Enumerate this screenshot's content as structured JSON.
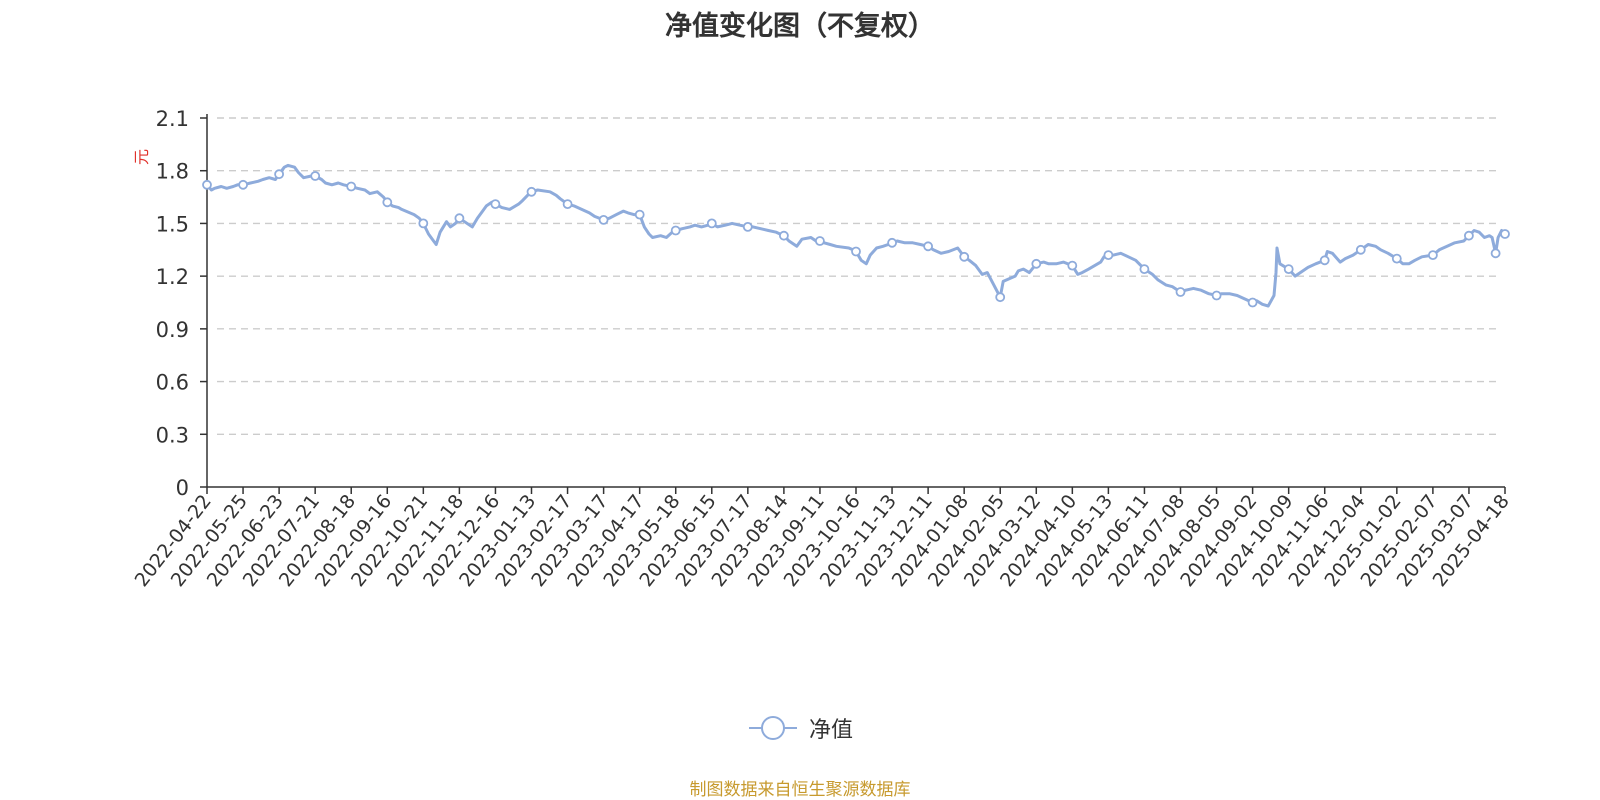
{
  "chart_data": {
    "type": "line",
    "title": "净值变化图（不复权）",
    "ylabel": "元",
    "ylim": [
      0,
      2.1
    ],
    "y_ticks": [
      "0",
      "0.3",
      "0.6",
      "0.9",
      "1.2",
      "1.5",
      "1.8",
      "2.1"
    ],
    "x_ticks": [
      "2022-04-22",
      "2022-05-25",
      "2022-06-23",
      "2022-07-21",
      "2022-08-18",
      "2022-09-16",
      "2022-10-21",
      "2022-11-18",
      "2022-12-16",
      "2023-01-13",
      "2023-02-17",
      "2023-03-17",
      "2023-04-17",
      "2023-05-18",
      "2023-06-15",
      "2023-07-17",
      "2023-08-14",
      "2023-09-11",
      "2023-10-16",
      "2023-11-13",
      "2023-12-11",
      "2024-01-08",
      "2024-02-05",
      "2024-03-12",
      "2024-04-10",
      "2024-05-13",
      "2024-06-11",
      "2024-07-08",
      "2024-08-05",
      "2024-09-02",
      "2024-10-09",
      "2024-11-06",
      "2024-12-04",
      "2025-01-02",
      "2025-02-07",
      "2025-03-07",
      "2025-04-18"
    ],
    "grid": true,
    "legend_position": "bottom",
    "series": [
      {
        "name": "净值",
        "color": "#8eabdb",
        "points": [
          [
            "2022-04-22",
            1.72
          ],
          [
            "2022-04-26",
            1.69
          ],
          [
            "2022-04-29",
            1.7
          ],
          [
            "2022-05-05",
            1.71
          ],
          [
            "2022-05-10",
            1.7
          ],
          [
            "2022-05-16",
            1.71
          ],
          [
            "2022-05-20",
            1.72
          ],
          [
            "2022-05-25",
            1.72
          ],
          [
            "2022-05-31",
            1.73
          ],
          [
            "2022-06-06",
            1.74
          ],
          [
            "2022-06-10",
            1.75
          ],
          [
            "2022-06-15",
            1.76
          ],
          [
            "2022-06-20",
            1.75
          ],
          [
            "2022-06-23",
            1.78
          ],
          [
            "2022-06-27",
            1.82
          ],
          [
            "2022-06-30",
            1.83
          ],
          [
            "2022-07-05",
            1.82
          ],
          [
            "2022-07-08",
            1.79
          ],
          [
            "2022-07-12",
            1.76
          ],
          [
            "2022-07-18",
            1.77
          ],
          [
            "2022-07-21",
            1.77
          ],
          [
            "2022-07-26",
            1.75
          ],
          [
            "2022-07-29",
            1.73
          ],
          [
            "2022-08-03",
            1.72
          ],
          [
            "2022-08-08",
            1.73
          ],
          [
            "2022-08-12",
            1.72
          ],
          [
            "2022-08-18",
            1.71
          ],
          [
            "2022-08-23",
            1.7
          ],
          [
            "2022-08-29",
            1.69
          ],
          [
            "2022-09-02",
            1.67
          ],
          [
            "2022-09-08",
            1.68
          ],
          [
            "2022-09-13",
            1.65
          ],
          [
            "2022-09-16",
            1.62
          ],
          [
            "2022-09-21",
            1.6
          ],
          [
            "2022-09-27",
            1.59
          ],
          [
            "2022-09-30",
            1.58
          ],
          [
            "2022-10-12",
            1.55
          ],
          [
            "2022-10-17",
            1.53
          ],
          [
            "2022-10-21",
            1.5
          ],
          [
            "2022-10-25",
            1.44
          ],
          [
            "2022-10-28",
            1.41
          ],
          [
            "2022-10-31",
            1.38
          ],
          [
            "2022-11-03",
            1.45
          ],
          [
            "2022-11-08",
            1.51
          ],
          [
            "2022-11-11",
            1.48
          ],
          [
            "2022-11-15",
            1.5
          ],
          [
            "2022-11-18",
            1.53
          ],
          [
            "2022-11-22",
            1.51
          ],
          [
            "2022-11-28",
            1.48
          ],
          [
            "2022-12-02",
            1.53
          ],
          [
            "2022-12-06",
            1.57
          ],
          [
            "2022-12-09",
            1.6
          ],
          [
            "2022-12-13",
            1.62
          ],
          [
            "2022-12-16",
            1.61
          ],
          [
            "2022-12-21",
            1.59
          ],
          [
            "2022-12-27",
            1.58
          ],
          [
            "2023-01-03",
            1.61
          ],
          [
            "2023-01-06",
            1.63
          ],
          [
            "2023-01-10",
            1.66
          ],
          [
            "2023-01-13",
            1.68
          ],
          [
            "2023-01-19",
            1.69
          ],
          [
            "2023-01-31",
            1.68
          ],
          [
            "2023-02-06",
            1.66
          ],
          [
            "2023-02-10",
            1.64
          ],
          [
            "2023-02-17",
            1.61
          ],
          [
            "2023-02-22",
            1.6
          ],
          [
            "2023-02-28",
            1.58
          ],
          [
            "2023-03-06",
            1.56
          ],
          [
            "2023-03-10",
            1.54
          ],
          [
            "2023-03-17",
            1.52
          ],
          [
            "2023-03-22",
            1.53
          ],
          [
            "2023-03-28",
            1.55
          ],
          [
            "2023-04-03",
            1.57
          ],
          [
            "2023-04-07",
            1.56
          ],
          [
            "2023-04-12",
            1.55
          ],
          [
            "2023-04-17",
            1.55
          ],
          [
            "2023-04-21",
            1.48
          ],
          [
            "2023-04-25",
            1.44
          ],
          [
            "2023-04-28",
            1.42
          ],
          [
            "2023-05-05",
            1.43
          ],
          [
            "2023-05-10",
            1.42
          ],
          [
            "2023-05-15",
            1.45
          ],
          [
            "2023-05-18",
            1.46
          ],
          [
            "2023-05-23",
            1.47
          ],
          [
            "2023-05-29",
            1.48
          ],
          [
            "2023-06-02",
            1.49
          ],
          [
            "2023-06-07",
            1.48
          ],
          [
            "2023-06-12",
            1.49
          ],
          [
            "2023-06-15",
            1.5
          ],
          [
            "2023-06-20",
            1.48
          ],
          [
            "2023-06-27",
            1.49
          ],
          [
            "2023-07-03",
            1.5
          ],
          [
            "2023-07-10",
            1.49
          ],
          [
            "2023-07-17",
            1.48
          ],
          [
            "2023-07-21",
            1.48
          ],
          [
            "2023-07-27",
            1.47
          ],
          [
            "2023-08-02",
            1.46
          ],
          [
            "2023-08-08",
            1.45
          ],
          [
            "2023-08-14",
            1.43
          ],
          [
            "2023-08-18",
            1.4
          ],
          [
            "2023-08-24",
            1.37
          ],
          [
            "2023-08-28",
            1.41
          ],
          [
            "2023-09-04",
            1.42
          ],
          [
            "2023-09-08",
            1.4
          ],
          [
            "2023-09-11",
            1.4
          ],
          [
            "2023-09-15",
            1.39
          ],
          [
            "2023-09-21",
            1.38
          ],
          [
            "2023-09-27",
            1.37
          ],
          [
            "2023-10-09",
            1.36
          ],
          [
            "2023-10-13",
            1.35
          ],
          [
            "2023-10-16",
            1.34
          ],
          [
            "2023-10-20",
            1.29
          ],
          [
            "2023-10-24",
            1.27
          ],
          [
            "2023-10-27",
            1.32
          ],
          [
            "2023-11-01",
            1.36
          ],
          [
            "2023-11-06",
            1.37
          ],
          [
            "2023-11-10",
            1.38
          ],
          [
            "2023-11-13",
            1.39
          ],
          [
            "2023-11-17",
            1.4
          ],
          [
            "2023-11-23",
            1.39
          ],
          [
            "2023-11-29",
            1.39
          ],
          [
            "2023-12-05",
            1.38
          ],
          [
            "2023-12-11",
            1.37
          ],
          [
            "2023-12-15",
            1.35
          ],
          [
            "2023-12-21",
            1.33
          ],
          [
            "2023-12-27",
            1.34
          ],
          [
            "2024-01-03",
            1.36
          ],
          [
            "2024-01-08",
            1.31
          ],
          [
            "2024-01-12",
            1.29
          ],
          [
            "2024-01-17",
            1.26
          ],
          [
            "2024-01-22",
            1.21
          ],
          [
            "2024-01-26",
            1.22
          ],
          [
            "2024-01-31",
            1.15
          ],
          [
            "2024-02-05",
            1.08
          ],
          [
            "2024-02-08",
            1.17
          ],
          [
            "2024-02-20",
            1.2
          ],
          [
            "2024-02-23",
            1.23
          ],
          [
            "2024-02-28",
            1.24
          ],
          [
            "2024-03-05",
            1.22
          ],
          [
            "2024-03-12",
            1.27
          ],
          [
            "2024-03-18",
            1.28
          ],
          [
            "2024-03-22",
            1.27
          ],
          [
            "2024-03-28",
            1.27
          ],
          [
            "2024-04-03",
            1.28
          ],
          [
            "2024-04-10",
            1.26
          ],
          [
            "2024-04-15",
            1.21
          ],
          [
            "2024-04-19",
            1.22
          ],
          [
            "2024-04-25",
            1.24
          ],
          [
            "2024-05-06",
            1.28
          ],
          [
            "2024-05-09",
            1.31
          ],
          [
            "2024-05-13",
            1.32
          ],
          [
            "2024-05-17",
            1.32
          ],
          [
            "2024-05-23",
            1.33
          ],
          [
            "2024-05-29",
            1.31
          ],
          [
            "2024-06-04",
            1.29
          ],
          [
            "2024-06-11",
            1.24
          ],
          [
            "2024-06-17",
            1.21
          ],
          [
            "2024-06-21",
            1.18
          ],
          [
            "2024-06-27",
            1.15
          ],
          [
            "2024-07-02",
            1.14
          ],
          [
            "2024-07-08",
            1.11
          ],
          [
            "2024-07-12",
            1.12
          ],
          [
            "2024-07-18",
            1.13
          ],
          [
            "2024-07-24",
            1.12
          ],
          [
            "2024-07-30",
            1.1
          ],
          [
            "2024-08-05",
            1.09
          ],
          [
            "2024-08-09",
            1.1
          ],
          [
            "2024-08-15",
            1.1
          ],
          [
            "2024-08-21",
            1.09
          ],
          [
            "2024-08-27",
            1.07
          ],
          [
            "2024-09-02",
            1.05
          ],
          [
            "2024-09-06",
            1.06
          ],
          [
            "2024-09-12",
            1.04
          ],
          [
            "2024-09-18",
            1.03
          ],
          [
            "2024-09-24",
            1.09
          ],
          [
            "2024-09-26",
            1.22
          ],
          [
            "2024-09-27",
            1.36
          ],
          [
            "2024-09-30",
            1.27
          ],
          [
            "2024-10-09",
            1.24
          ],
          [
            "2024-10-14",
            1.2
          ],
          [
            "2024-10-18",
            1.22
          ],
          [
            "2024-10-24",
            1.25
          ],
          [
            "2024-10-30",
            1.27
          ],
          [
            "2024-11-06",
            1.29
          ],
          [
            "2024-11-08",
            1.34
          ],
          [
            "2024-11-12",
            1.33
          ],
          [
            "2024-11-18",
            1.28
          ],
          [
            "2024-11-22",
            1.3
          ],
          [
            "2024-11-28",
            1.32
          ],
          [
            "2024-12-04",
            1.35
          ],
          [
            "2024-12-10",
            1.38
          ],
          [
            "2024-12-16",
            1.37
          ],
          [
            "2024-12-20",
            1.35
          ],
          [
            "2024-12-26",
            1.33
          ],
          [
            "2025-01-02",
            1.3
          ],
          [
            "2025-01-08",
            1.27
          ],
          [
            "2025-01-14",
            1.27
          ],
          [
            "2025-01-20",
            1.29
          ],
          [
            "2025-01-27",
            1.31
          ],
          [
            "2025-02-07",
            1.32
          ],
          [
            "2025-02-12",
            1.35
          ],
          [
            "2025-02-18",
            1.37
          ],
          [
            "2025-02-24",
            1.39
          ],
          [
            "2025-03-03",
            1.4
          ],
          [
            "2025-03-07",
            1.43
          ],
          [
            "2025-03-13",
            1.46
          ],
          [
            "2025-03-19",
            1.45
          ],
          [
            "2025-03-25",
            1.42
          ],
          [
            "2025-03-31",
            1.43
          ],
          [
            "2025-04-03",
            1.42
          ],
          [
            "2025-04-07",
            1.33
          ],
          [
            "2025-04-10",
            1.42
          ],
          [
            "2025-04-14",
            1.46
          ],
          [
            "2025-04-18",
            1.44
          ]
        ],
        "markers": [
          [
            "2022-04-22",
            1.72
          ],
          [
            "2022-05-25",
            1.72
          ],
          [
            "2022-06-23",
            1.78
          ],
          [
            "2022-07-21",
            1.77
          ],
          [
            "2022-08-18",
            1.71
          ],
          [
            "2022-09-16",
            1.62
          ],
          [
            "2022-10-21",
            1.5
          ],
          [
            "2022-11-18",
            1.53
          ],
          [
            "2022-12-16",
            1.61
          ],
          [
            "2023-01-13",
            1.68
          ],
          [
            "2023-02-17",
            1.61
          ],
          [
            "2023-03-17",
            1.52
          ],
          [
            "2023-04-17",
            1.55
          ],
          [
            "2023-05-18",
            1.46
          ],
          [
            "2023-06-15",
            1.5
          ],
          [
            "2023-07-17",
            1.48
          ],
          [
            "2023-08-14",
            1.43
          ],
          [
            "2023-09-11",
            1.4
          ],
          [
            "2023-10-16",
            1.34
          ],
          [
            "2023-11-13",
            1.39
          ],
          [
            "2023-12-11",
            1.37
          ],
          [
            "2024-01-08",
            1.31
          ],
          [
            "2024-02-05",
            1.08
          ],
          [
            "2024-03-12",
            1.27
          ],
          [
            "2024-04-10",
            1.26
          ],
          [
            "2024-05-13",
            1.32
          ],
          [
            "2024-06-11",
            1.24
          ],
          [
            "2024-07-08",
            1.11
          ],
          [
            "2024-08-05",
            1.09
          ],
          [
            "2024-09-02",
            1.05
          ],
          [
            "2024-10-09",
            1.24
          ],
          [
            "2024-11-06",
            1.29
          ],
          [
            "2024-12-04",
            1.35
          ],
          [
            "2025-01-02",
            1.3
          ],
          [
            "2025-02-07",
            1.32
          ],
          [
            "2025-03-07",
            1.43
          ],
          [
            "2025-04-07",
            1.33
          ],
          [
            "2025-04-18",
            1.44
          ]
        ]
      }
    ]
  },
  "footer": {
    "source_text": "制图数据来自恒生聚源数据库"
  },
  "colors": {
    "line": "#8eabdb",
    "unit_label": "#e0322b",
    "source_text": "#c79a2e",
    "grid": "#cccccc",
    "axis": "#333333"
  }
}
